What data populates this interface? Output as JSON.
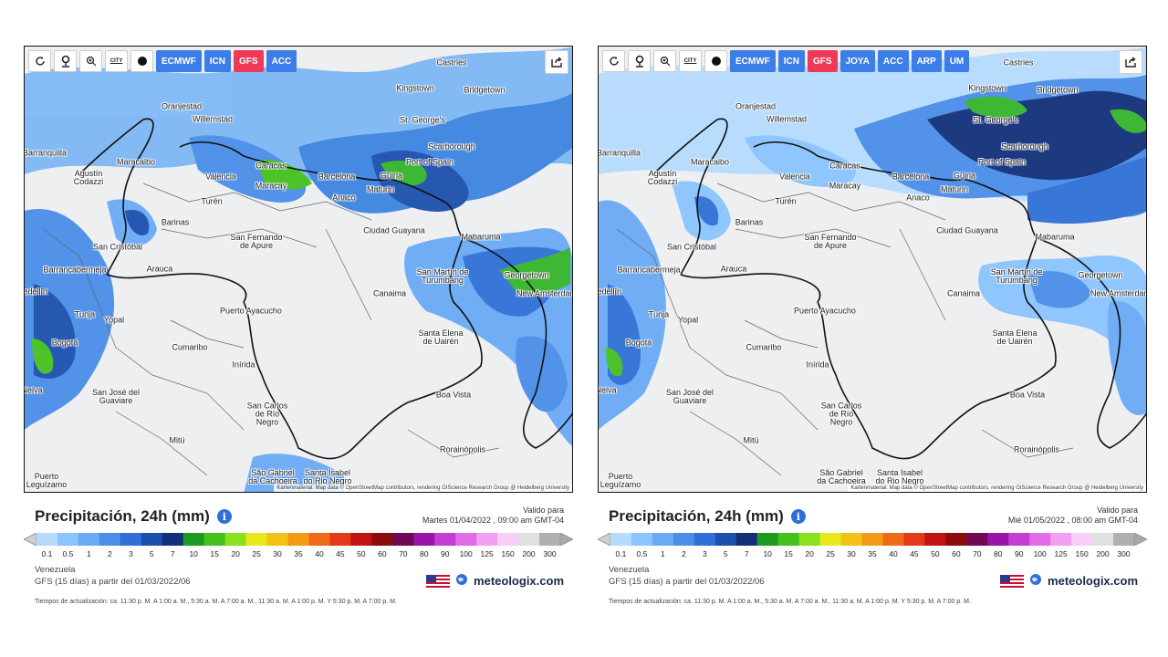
{
  "panels": [
    {
      "toolbar": {
        "icons": [
          "refresh-icon",
          "location-pin-icon",
          "zoom-icon",
          "city-toggle-icon",
          "dot-marker-icon"
        ],
        "city_label": "CITY",
        "models": [
          {
            "label": "ECMWF",
            "active": false
          },
          {
            "label": "ICN",
            "active": false
          },
          {
            "label": "GFS",
            "active": true
          },
          {
            "label": "ACC",
            "active": false
          }
        ]
      },
      "legend": {
        "title": "Precipitación, 24h (mm)",
        "valid_for": "Valido para",
        "datetime": "Martes 01/04/2022 ,  09:00 am  GMT-04"
      },
      "region": "Venezuela",
      "model_run": "GFS  (15 días)  a partir del 01/03/2022/06"
    },
    {
      "toolbar": {
        "icons": [
          "refresh-icon",
          "location-pin-icon",
          "zoom-icon",
          "city-toggle-icon",
          "dot-marker-icon"
        ],
        "city_label": "CITY",
        "models": [
          {
            "label": "ECMWF",
            "active": false
          },
          {
            "label": "ICN",
            "active": false
          },
          {
            "label": "GFS",
            "active": true
          },
          {
            "label": "JOYA",
            "active": false
          },
          {
            "label": "ACC",
            "active": false
          },
          {
            "label": "ARP",
            "active": false
          },
          {
            "label": "UM",
            "active": false
          }
        ]
      },
      "legend": {
        "title": "Precipitación, 24h (mm)",
        "valid_for": "Valido para",
        "datetime": "Mié 01/05/2022 ,  08:00 am  GMT-04"
      },
      "region": "Venezuela",
      "model_run": "GFS  (15 días)  a partir del 01/03/2022/06"
    }
  ],
  "cities": [
    "Castries",
    "Kingstown",
    "Bridgetown",
    "St. George's",
    "Oranjestad",
    "Willemstad",
    "Scarborough",
    "Port of Spain",
    "Güiria",
    "Barranquilla",
    "Maracaibo",
    "Caracas",
    "Valencia",
    "Maracay",
    "Barcelona",
    "Maturin",
    "Anaco",
    "Agustín Codazzi",
    "Turén",
    "Barinas",
    "Ciudad Guayana",
    "Mabaruma",
    "San Cristóbal",
    "San Fernando de Apure",
    "Arauca",
    "Barrancabermeja",
    "Georgetown",
    "San Martín de Turumbang",
    "Canaima",
    "New Amsterdam",
    "Medellín",
    "Tunja",
    "Yopal",
    "Puerto Ayacucho",
    "Santa Elena de Uairén",
    "Bogotá",
    "Cumaribo",
    "Inírida",
    "Neiva",
    "San José del Guaviare",
    "San Carlos de Río Negro",
    "Boa Vista",
    "Mitú",
    "Rorainópolis",
    "Puerto Leguízamo",
    "São Gabriel da Cachoeira",
    "Santa Isabel do Rio Negro"
  ],
  "attribution": "Kartenmaterial: Map data © OpenStreetMap contributors, rendering GIScience Research Group @ Heidelberg University",
  "scale_labels": [
    "0.1",
    "0.5",
    "1",
    "2",
    "3",
    "5",
    "7",
    "10",
    "15",
    "20",
    "25",
    "30",
    "35",
    "40",
    "45",
    "50",
    "60",
    "70",
    "80",
    "90",
    "100",
    "125",
    "150",
    "200",
    "300"
  ],
  "scale_colors": [
    "#b6dbff",
    "#8cc4ff",
    "#6aaaf5",
    "#4a8ee8",
    "#2f70d6",
    "#1c4fae",
    "#12307a",
    "#1d9b20",
    "#45c11f",
    "#8be020",
    "#e8e81c",
    "#f2c316",
    "#f49a18",
    "#ef6a18",
    "#e33a1a",
    "#c21414",
    "#8e0b0b",
    "#6e0a55",
    "#9a14a8",
    "#c23ed4",
    "#e26be6",
    "#f39ff2",
    "#f8cdf6",
    "#e0e0e0",
    "#b0b0b0"
  ],
  "brand": {
    "name": "meteologix.com"
  },
  "updates": "Tiempos de actualización: ca. 11:30 p. M. A 1:00 a. M., 5:30 a. M. A 7:00 a. M., 11:30 a. M. A 1:00 p. M. Y 5:30 p. M. A 7:00 p. M.",
  "map_legend_title": "Precipitación, 24h (mm)",
  "colors": {
    "model_button": "#3d7de8",
    "model_active": "#ec3a57",
    "brand": "#1a2a4a"
  }
}
